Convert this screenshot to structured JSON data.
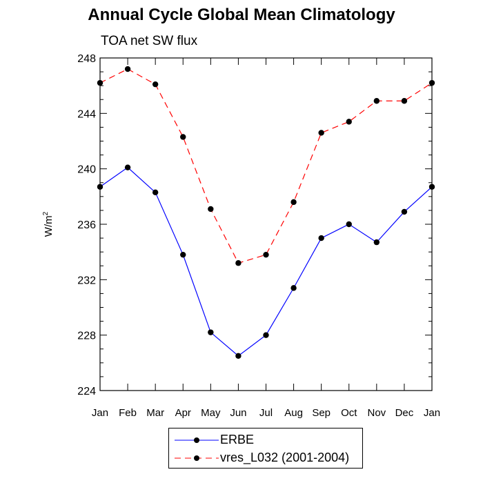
{
  "chart_data": {
    "type": "line",
    "title": "Annual Cycle Global Mean Climatology",
    "subtitle": "TOA net SW flux",
    "xlabel": "",
    "ylabel": "W/m",
    "ylabel_sup": "2",
    "categories": [
      "Jan",
      "Feb",
      "Mar",
      "Apr",
      "May",
      "Jun",
      "Jul",
      "Aug",
      "Sep",
      "Oct",
      "Nov",
      "Dec",
      "Jan"
    ],
    "ylim": [
      224,
      248
    ],
    "yticks": [
      224,
      228,
      232,
      236,
      240,
      244,
      248
    ],
    "series": [
      {
        "name": "ERBE",
        "color": "#0000ff",
        "dash": false,
        "values": [
          238.7,
          240.1,
          238.3,
          233.8,
          228.2,
          226.5,
          228.0,
          231.4,
          235.0,
          236.0,
          234.7,
          236.9,
          238.7
        ]
      },
      {
        "name": "vres_L032 (2001-2004)",
        "color": "#ff0000",
        "dash": true,
        "values": [
          246.2,
          247.2,
          246.1,
          242.3,
          237.1,
          233.2,
          233.8,
          237.6,
          242.6,
          243.4,
          244.9,
          244.9,
          246.2
        ]
      }
    ]
  }
}
